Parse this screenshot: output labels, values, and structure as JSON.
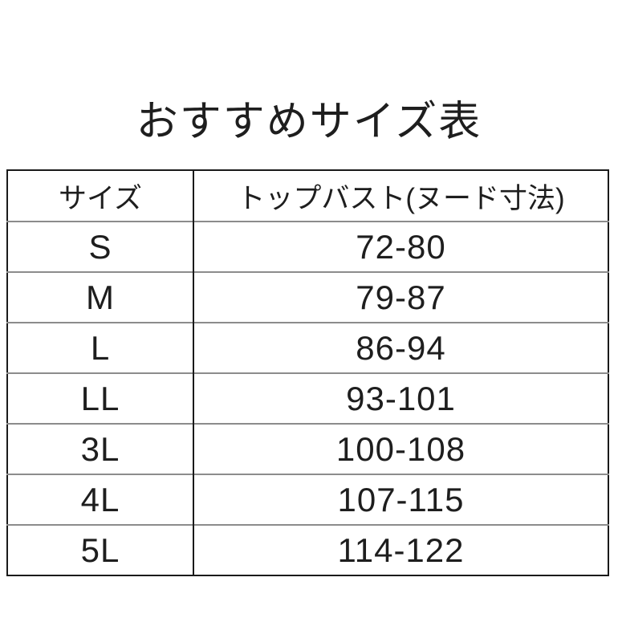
{
  "title": "おすすめサイズ表",
  "chart_data": {
    "type": "table",
    "title": "おすすめサイズ表",
    "columns": [
      "サイズ",
      "トップバスト(ヌード寸法)"
    ],
    "rows": [
      {
        "size": "S",
        "bust": "72-80"
      },
      {
        "size": "M",
        "bust": "79-87"
      },
      {
        "size": "L",
        "bust": "86-94"
      },
      {
        "size": "LL",
        "bust": "93-101"
      },
      {
        "size": "3L",
        "bust": "100-108"
      },
      {
        "size": "4L",
        "bust": "107-115"
      },
      {
        "size": "5L",
        "bust": "114-122"
      }
    ]
  },
  "colors": {
    "background": "#ffffff",
    "text": "#1e1e1e",
    "outer_border": "#1a1a1a",
    "row_separator": "#8c8c8c"
  }
}
